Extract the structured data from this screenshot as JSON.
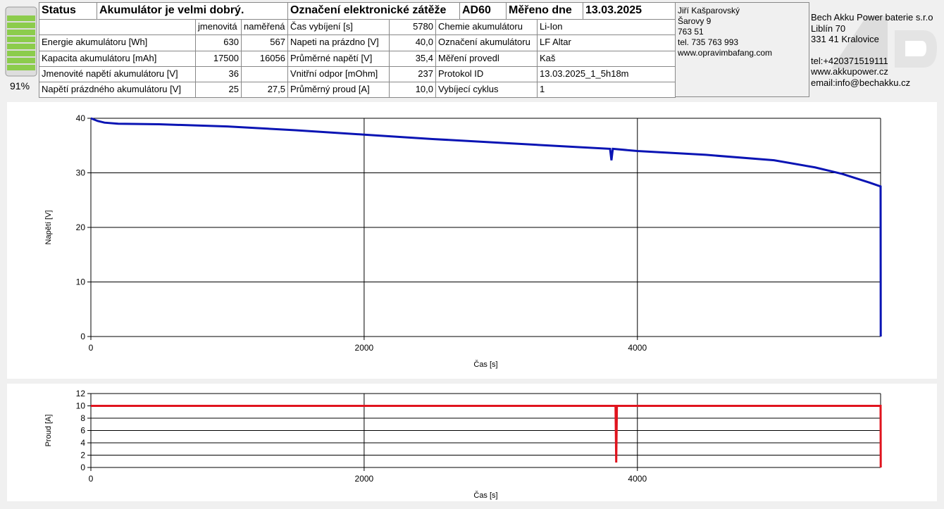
{
  "battery_level": "91%",
  "status": {
    "label": "Status",
    "text": "Akumulátor je velmi dobrý."
  },
  "battery_table": {
    "columns": [
      "jmenovitá",
      "naměřená"
    ],
    "rows": [
      [
        "Energie akumulátoru [Wh]",
        "630",
        "567"
      ],
      [
        "Kapacita akumulátoru [mAh]",
        "17500",
        "16056"
      ],
      [
        "Jmenovité napětí akumulátoru [V]",
        "36",
        null
      ],
      [
        "Napětí prázdného akumulátoru [V]",
        "25",
        "27,5"
      ]
    ]
  },
  "load_table": {
    "header": [
      "Označení elektronické zátěže",
      "AD60",
      "Měřeno dne",
      "13.03.2025"
    ],
    "rows": [
      [
        "Čas vybíjení [s]",
        "5780",
        "Chemie akumulátoru",
        "Li-Ion"
      ],
      [
        "Napeti na prázdno [V]",
        "40,0",
        "Označení akumulátoru",
        "LF Altar"
      ],
      [
        "Průměrné napětí [V]",
        "35,4",
        "Měření provedl",
        "Kaš"
      ],
      [
        "Vnitřní odpor [mOhm]",
        "237",
        "Protokol ID",
        "13.03.2025_1_5h18m"
      ],
      [
        "Průměrný proud [A]",
        "10,0",
        "Vybíjecí cyklus",
        "1"
      ]
    ]
  },
  "contact": [
    "Jiří Kašparovský",
    "Šarovy 9",
    "763 51",
    "tel. 735 763 993",
    "www.opravimbafang.com"
  ],
  "company": [
    "Bech Akku Power baterie s.r.o",
    "Liblín 70",
    "331 41 Kralovice",
    "tel:+420371519111",
    "www.akkupower.cz",
    "email:info@bechakku.cz"
  ],
  "chart_data": [
    {
      "type": "line",
      "xlabel": "Čas [s]",
      "ylabel": "Napětí [V]",
      "color": "#0a14b4",
      "grid": true,
      "x": [
        0,
        50,
        100,
        200,
        500,
        1000,
        1500,
        2000,
        2500,
        3000,
        3500,
        3800,
        3810,
        3820,
        4000,
        4500,
        5000,
        5300,
        5500,
        5700,
        5780,
        5781
      ],
      "values": [
        40,
        39.5,
        39.2,
        39.0,
        38.9,
        38.5,
        37.8,
        37.0,
        36.2,
        35.5,
        34.8,
        34.4,
        32.3,
        34.4,
        34.0,
        33.3,
        32.3,
        31.0,
        29.8,
        28.2,
        27.5,
        0
      ],
      "xlim": [
        0,
        5780
      ],
      "xticks": [
        0,
        2000,
        4000
      ],
      "ylim": [
        0,
        40
      ],
      "yticks": [
        0,
        10,
        20,
        30,
        40
      ]
    },
    {
      "type": "line",
      "xlabel": "Čas [s]",
      "ylabel": "Proud [A]",
      "color": "#e0141e",
      "grid": true,
      "x": [
        0,
        3840,
        3845,
        3850,
        5780,
        5781
      ],
      "values": [
        10,
        10,
        0.8,
        10,
        10,
        0
      ],
      "xlim": [
        0,
        5780
      ],
      "xticks": [
        0,
        2000,
        4000
      ],
      "ylim": [
        0,
        12
      ],
      "yticks": [
        0,
        2,
        4,
        6,
        8,
        10,
        12
      ]
    }
  ]
}
